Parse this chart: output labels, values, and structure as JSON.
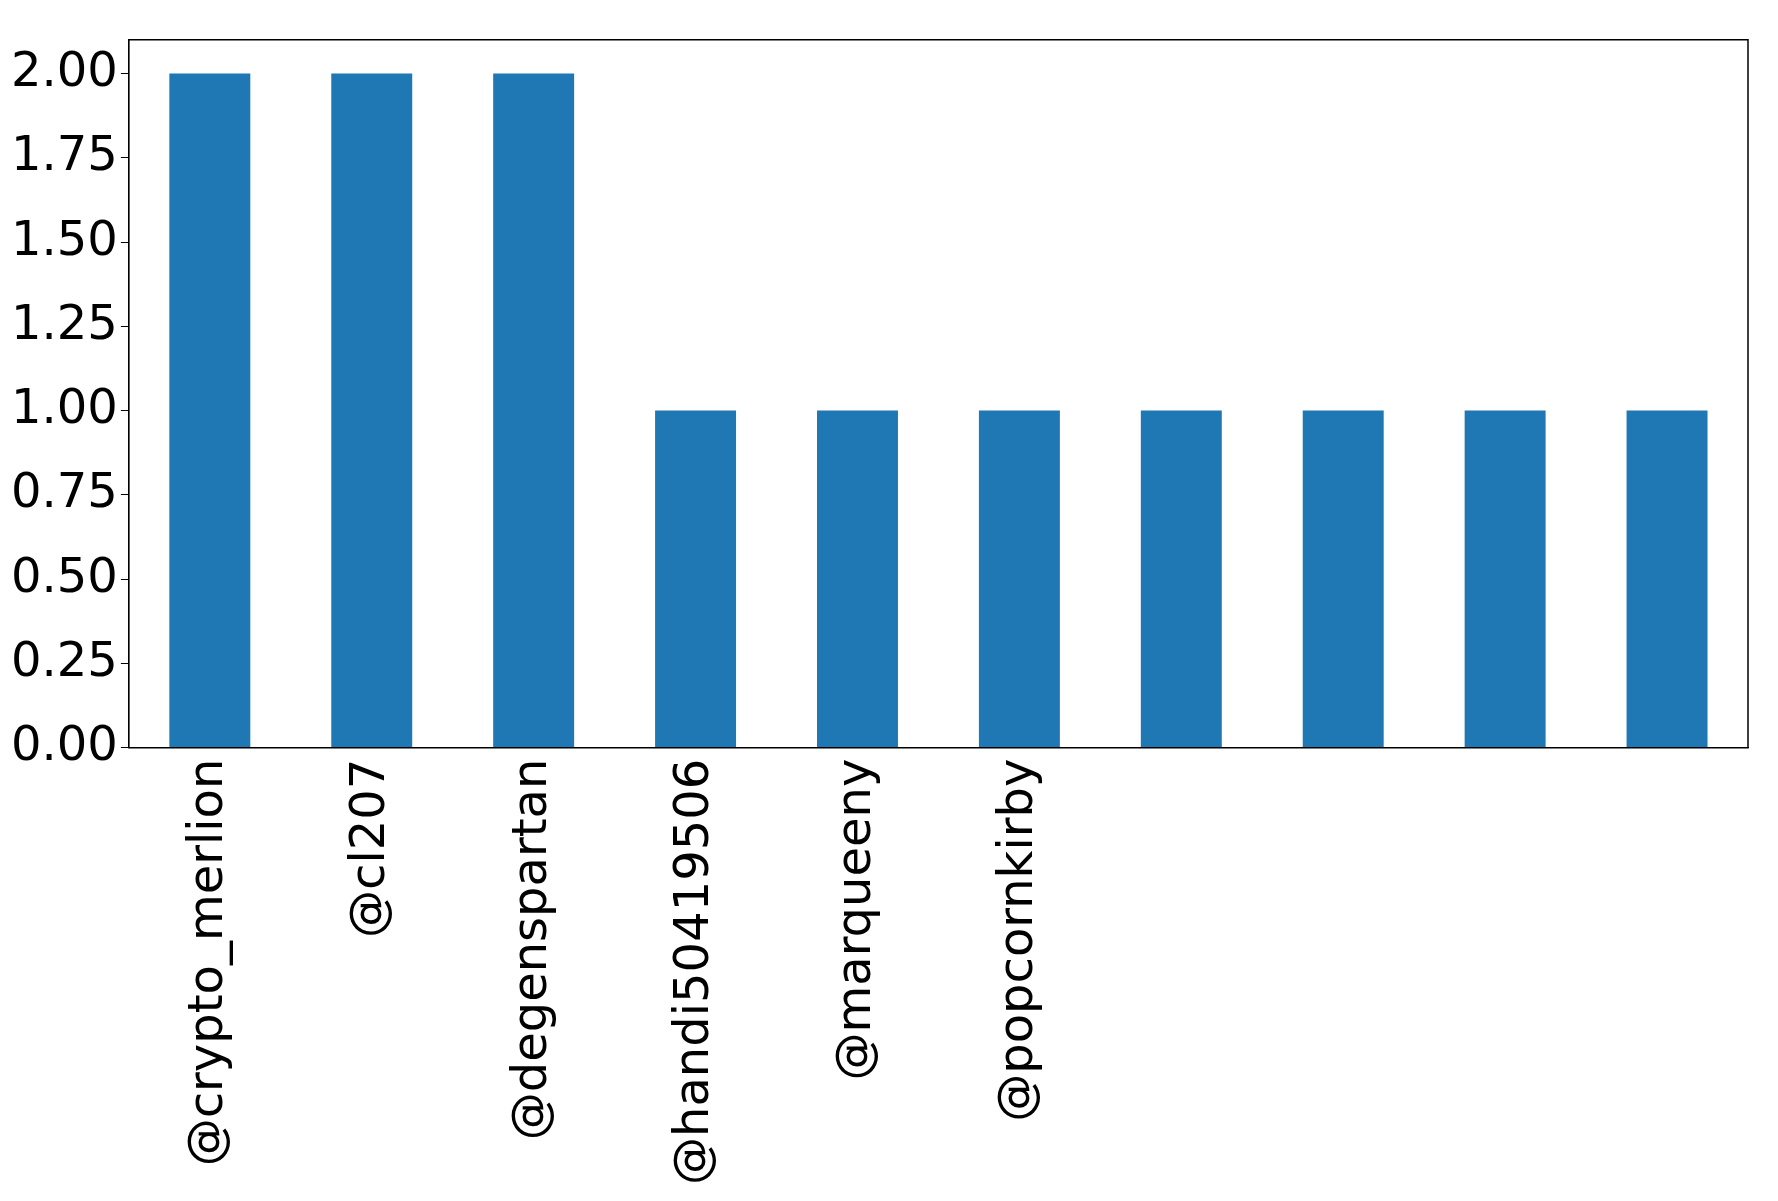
{
  "chart_data": {
    "type": "bar",
    "categories": [
      "@crypto_merlion",
      "@cl207",
      "@degenspartan",
      "@handi50419506",
      "@marqueeny",
      "@popcornkirby",
      null,
      null,
      null,
      null
    ],
    "values": [
      2,
      2,
      2,
      1,
      1,
      1,
      1,
      1,
      1,
      1
    ],
    "color": "#1f77b4",
    "ylim": [
      0,
      2.1
    ],
    "yticks": [
      {
        "value": 0,
        "label": "0.00"
      },
      {
        "value": 0.25,
        "label": "0.25"
      },
      {
        "value": 0.5,
        "label": "0.50"
      },
      {
        "value": 0.75,
        "label": "0.75"
      },
      {
        "value": 1,
        "label": "1.00"
      },
      {
        "value": 1.25,
        "label": "1.25"
      },
      {
        "value": 1.5,
        "label": "1.50"
      },
      {
        "value": 1.75,
        "label": "1.75"
      },
      {
        "value": 2,
        "label": "2.00"
      }
    ],
    "grid": false,
    "legend": false
  }
}
